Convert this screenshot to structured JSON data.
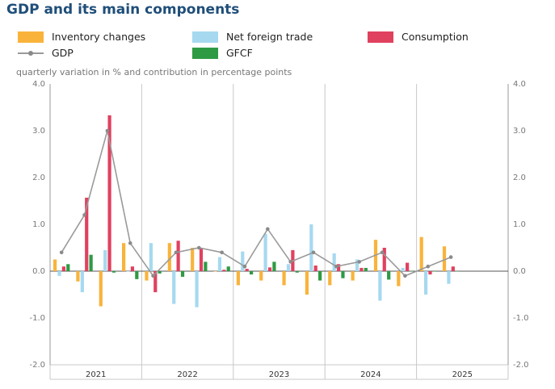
{
  "header": {
    "title": "GDP and its main components"
  },
  "legend": [
    {
      "key": "inventory",
      "label": "Inventory changes",
      "color": "#f9b33b",
      "kind": "bar"
    },
    {
      "key": "net_trade",
      "label": "Net foreign trade",
      "color": "#a6d9f0",
      "kind": "bar"
    },
    {
      "key": "consumption",
      "label": "Consumption",
      "color": "#e0415f",
      "kind": "bar"
    },
    {
      "key": "gdp",
      "label": "GDP",
      "color": "#9a9a9a",
      "kind": "line"
    },
    {
      "key": "gfcf",
      "label": "GFCF",
      "color": "#2e9a44",
      "kind": "bar"
    }
  ],
  "subtitle": "quarterly variation in % and contribution in percentage points",
  "chart_data": {
    "type": "bar",
    "title": "GDP and its main components",
    "ylabel": "quarterly variation in % and contribution in percentage points",
    "ylim": [
      -2.0,
      4.0
    ],
    "yticks": [
      -2.0,
      -1.0,
      0.0,
      1.0,
      2.0,
      3.0,
      4.0
    ],
    "ytick_labels": [
      "-2.0",
      "-1.0",
      "0.0",
      "1.0",
      "2.0",
      "3.0",
      "4.0"
    ],
    "years": [
      "2021",
      "2022",
      "2023",
      "2024",
      "2025"
    ],
    "categories": [
      "2021Q1",
      "2021Q2",
      "2021Q3",
      "2021Q4",
      "2022Q1",
      "2022Q2",
      "2022Q3",
      "2022Q4",
      "2023Q1",
      "2023Q2",
      "2023Q3",
      "2023Q4",
      "2024Q1",
      "2024Q2",
      "2024Q3",
      "2024Q4",
      "2025Q1",
      "2025Q2"
    ],
    "series": [
      {
        "name": "Inventory changes",
        "key": "inventory",
        "type": "bar",
        "values": [
          0.25,
          -0.22,
          -0.75,
          0.6,
          -0.2,
          0.6,
          0.5,
          0.0,
          -0.3,
          -0.2,
          -0.3,
          -0.5,
          -0.3,
          -0.2,
          0.67,
          -0.32,
          0.73,
          0.53
        ]
      },
      {
        "name": "Net foreign trade",
        "key": "net_trade",
        "type": "bar",
        "values": [
          -0.1,
          -0.45,
          0.45,
          0.0,
          0.6,
          -0.7,
          -0.77,
          0.3,
          0.42,
          0.8,
          0.15,
          1.0,
          0.38,
          0.25,
          -0.63,
          0.07,
          -0.5,
          -0.27
        ]
      },
      {
        "name": "Consumption",
        "key": "consumption",
        "type": "bar",
        "values": [
          0.1,
          1.57,
          3.33,
          0.1,
          -0.45,
          0.65,
          0.5,
          0.03,
          0.05,
          0.08,
          0.45,
          0.12,
          0.15,
          0.07,
          0.5,
          0.18,
          -0.07,
          0.1
        ]
      },
      {
        "name": "GFCF",
        "key": "gfcf",
        "type": "bar",
        "values": [
          0.15,
          0.35,
          -0.03,
          -0.17,
          -0.05,
          -0.12,
          0.2,
          0.1,
          -0.07,
          0.2,
          -0.03,
          -0.2,
          -0.15,
          0.07,
          -0.18,
          0.0,
          0.0,
          0.0
        ]
      },
      {
        "name": "GDP",
        "key": "gdp",
        "type": "line",
        "values": [
          0.4,
          1.2,
          3.0,
          0.6,
          -0.1,
          0.4,
          0.5,
          0.4,
          0.1,
          0.9,
          0.2,
          0.4,
          0.1,
          0.2,
          0.4,
          -0.1,
          0.1,
          0.3
        ]
      }
    ]
  }
}
